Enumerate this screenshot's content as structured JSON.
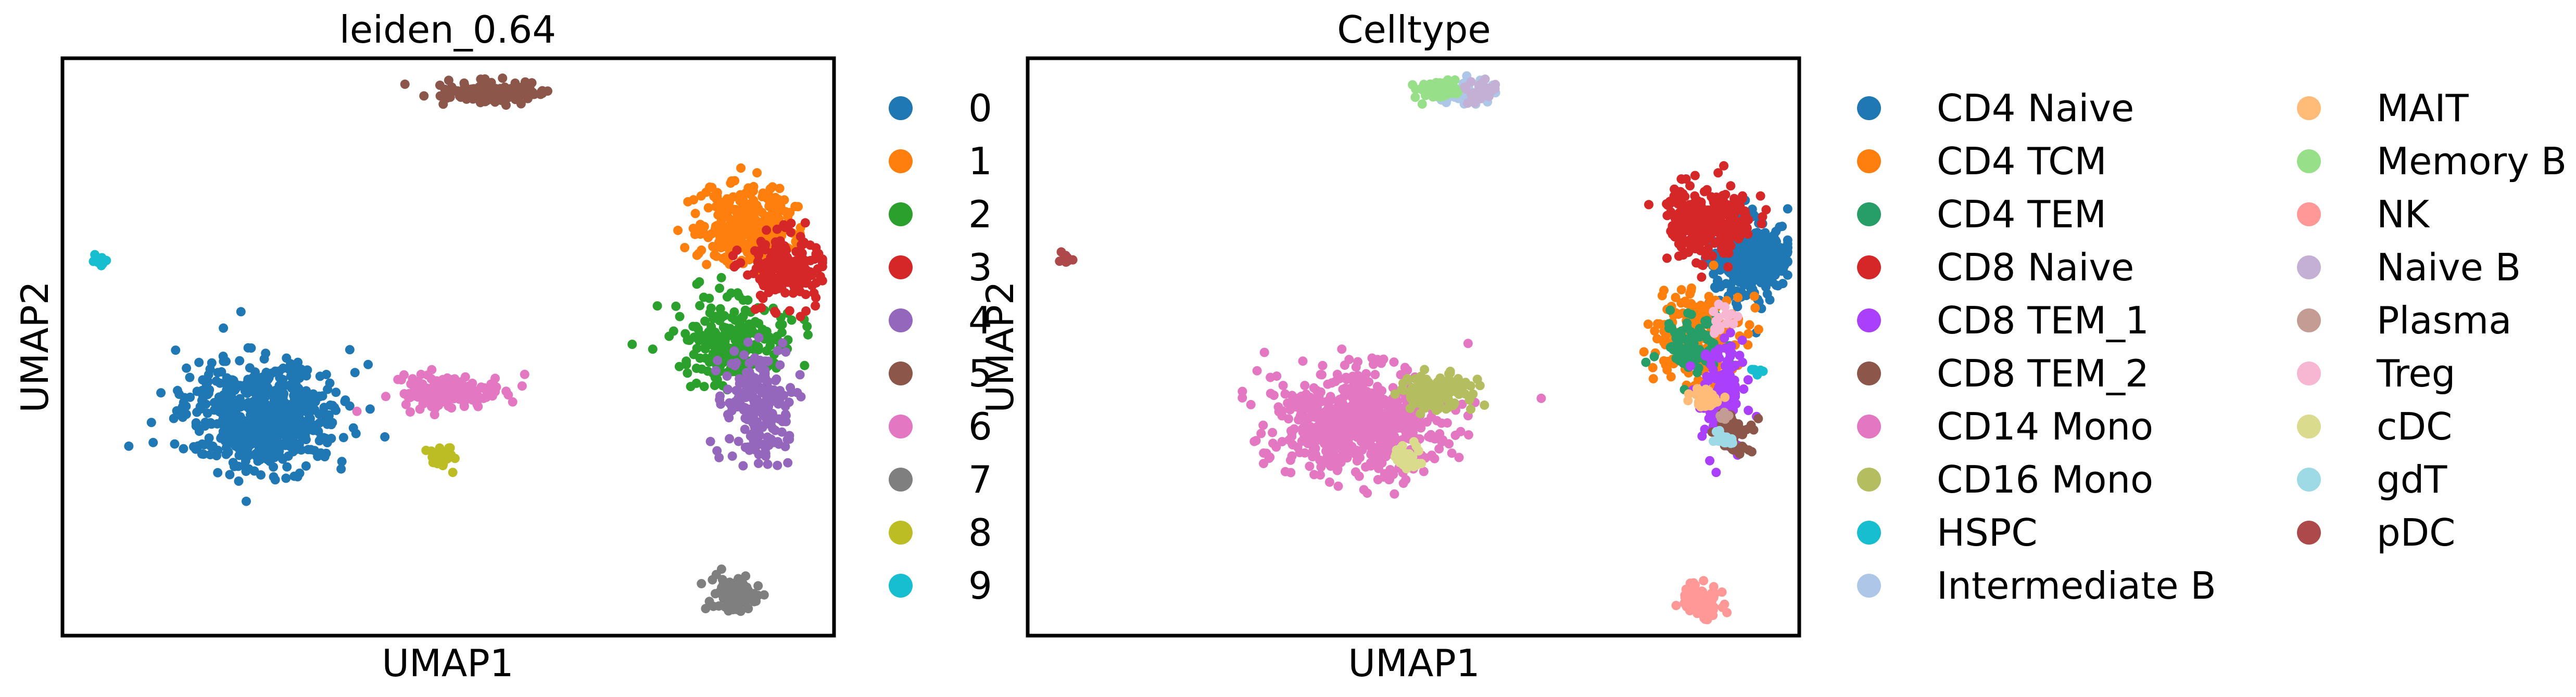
{
  "chart_data": [
    {
      "type": "scatter",
      "title": "leiden_0.64",
      "xlabel": "UMAP1",
      "ylabel": "UMAP2",
      "legend_position": "right",
      "grid": false,
      "clusters": [
        {
          "name": "0",
          "color": "#1f77b4",
          "cx": 0.26,
          "cy": 0.62,
          "sx": 0.05,
          "sy": 0.045,
          "n": 650
        },
        {
          "name": "1",
          "color": "#ff7f0e",
          "cx": 0.885,
          "cy": 0.29,
          "sx": 0.03,
          "sy": 0.035,
          "n": 320
        },
        {
          "name": "2",
          "color": "#2ca02c",
          "cx": 0.87,
          "cy": 0.49,
          "sx": 0.035,
          "sy": 0.035,
          "n": 240
        },
        {
          "name": "3",
          "color": "#d62728",
          "cx": 0.935,
          "cy": 0.36,
          "sx": 0.025,
          "sy": 0.03,
          "n": 200
        },
        {
          "name": "4",
          "color": "#9467bd",
          "cx": 0.9,
          "cy": 0.6,
          "sx": 0.02,
          "sy": 0.05,
          "n": 220
        },
        {
          "name": "5",
          "color": "#8c564b",
          "cx": 0.56,
          "cy": 0.06,
          "sx": 0.035,
          "sy": 0.01,
          "n": 140
        },
        {
          "name": "6",
          "color": "#e377c2",
          "cx": 0.5,
          "cy": 0.58,
          "sx": 0.035,
          "sy": 0.015,
          "n": 160
        },
        {
          "name": "7",
          "color": "#7f7f7f",
          "cx": 0.87,
          "cy": 0.93,
          "sx": 0.015,
          "sy": 0.015,
          "n": 80
        },
        {
          "name": "8",
          "color": "#bcbd22",
          "cx": 0.49,
          "cy": 0.69,
          "sx": 0.01,
          "sy": 0.01,
          "n": 30
        },
        {
          "name": "9",
          "color": "#17becf",
          "cx": 0.05,
          "cy": 0.35,
          "sx": 0.004,
          "sy": 0.006,
          "n": 12
        }
      ]
    },
    {
      "type": "scatter",
      "title": "Celltype",
      "xlabel": "UMAP1",
      "ylabel": "UMAP2",
      "legend_position": "right",
      "grid": false,
      "clusters": [
        {
          "name": "CD4 Naive",
          "color": "#1f77b4",
          "cx": 0.935,
          "cy": 0.35,
          "sx": 0.025,
          "sy": 0.035,
          "n": 300
        },
        {
          "name": "CD4 TCM",
          "color": "#ff7f0e",
          "cx": 0.87,
          "cy": 0.48,
          "sx": 0.03,
          "sy": 0.04,
          "n": 200
        },
        {
          "name": "CD4 TEM",
          "color": "#279e68",
          "cx": 0.86,
          "cy": 0.5,
          "sx": 0.02,
          "sy": 0.03,
          "n": 80
        },
        {
          "name": "CD8 Naive",
          "color": "#d62728",
          "cx": 0.885,
          "cy": 0.28,
          "sx": 0.028,
          "sy": 0.03,
          "n": 280
        },
        {
          "name": "CD8 TEM_1",
          "color": "#aa40fc",
          "cx": 0.9,
          "cy": 0.59,
          "sx": 0.015,
          "sy": 0.05,
          "n": 120
        },
        {
          "name": "CD8 TEM_2",
          "color": "#8c564b",
          "cx": 0.915,
          "cy": 0.65,
          "sx": 0.01,
          "sy": 0.015,
          "n": 50
        },
        {
          "name": "CD14 Mono",
          "color": "#e377c2",
          "cx": 0.43,
          "cy": 0.63,
          "sx": 0.055,
          "sy": 0.045,
          "n": 650
        },
        {
          "name": "CD16 Mono",
          "color": "#b5bd61",
          "cx": 0.53,
          "cy": 0.58,
          "sx": 0.025,
          "sy": 0.015,
          "n": 120
        },
        {
          "name": "HSPC",
          "color": "#17becf",
          "cx": 0.945,
          "cy": 0.54,
          "sx": 0.004,
          "sy": 0.006,
          "n": 10
        },
        {
          "name": "Intermediate B",
          "color": "#aec7e8",
          "cx": 0.565,
          "cy": 0.06,
          "sx": 0.02,
          "sy": 0.01,
          "n": 70
        },
        {
          "name": "MAIT",
          "color": "#ffbb78",
          "cx": 0.88,
          "cy": 0.59,
          "sx": 0.01,
          "sy": 0.01,
          "n": 40
        },
        {
          "name": "Memory B",
          "color": "#98df8a",
          "cx": 0.53,
          "cy": 0.055,
          "sx": 0.015,
          "sy": 0.008,
          "n": 60
        },
        {
          "name": "NK",
          "color": "#ff9896",
          "cx": 0.87,
          "cy": 0.94,
          "sx": 0.015,
          "sy": 0.015,
          "n": 80
        },
        {
          "name": "Naive B",
          "color": "#c5b0d5",
          "cx": 0.585,
          "cy": 0.055,
          "sx": 0.01,
          "sy": 0.008,
          "n": 40
        },
        {
          "name": "Plasma",
          "color": "#c49c94",
          "cx": 0.9,
          "cy": 0.62,
          "sx": 0.005,
          "sy": 0.005,
          "n": 8
        },
        {
          "name": "Treg",
          "color": "#f7b6d2",
          "cx": 0.9,
          "cy": 0.45,
          "sx": 0.01,
          "sy": 0.01,
          "n": 15
        },
        {
          "name": "cDC",
          "color": "#dbdb8d",
          "cx": 0.49,
          "cy": 0.69,
          "sx": 0.01,
          "sy": 0.01,
          "n": 30
        },
        {
          "name": "gdT",
          "color": "#9edae5",
          "cx": 0.9,
          "cy": 0.66,
          "sx": 0.008,
          "sy": 0.008,
          "n": 20
        },
        {
          "name": "pDC",
          "color": "#ad494a",
          "cx": 0.05,
          "cy": 0.35,
          "sx": 0.004,
          "sy": 0.006,
          "n": 12
        }
      ]
    }
  ]
}
